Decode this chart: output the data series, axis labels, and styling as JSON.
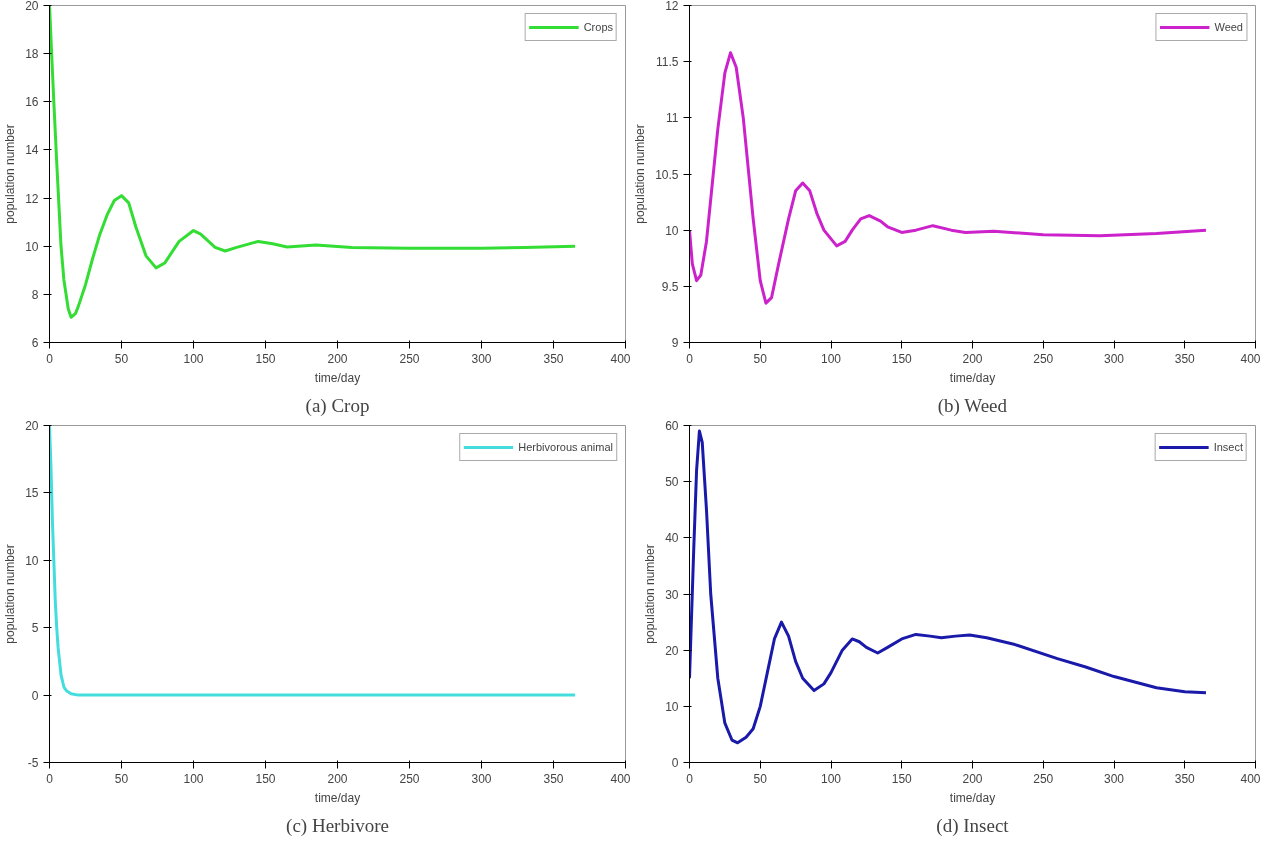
{
  "chart_data": [
    {
      "type": "line",
      "title": "(a) Crop",
      "xlabel": "time/day",
      "ylabel": "population number",
      "xlim": [
        0,
        400
      ],
      "ylim": [
        6,
        20
      ],
      "xticks": [
        0,
        50,
        100,
        150,
        200,
        250,
        300,
        350,
        400
      ],
      "yticks": [
        6,
        8,
        10,
        12,
        14,
        16,
        18,
        20
      ],
      "legend": "top right",
      "grid": false,
      "series": [
        {
          "name": "Crops",
          "color": "#33dd33",
          "x": [
            0,
            3,
            5,
            8,
            10,
            13,
            15,
            18,
            20,
            25,
            30,
            35,
            40,
            45,
            50,
            55,
            60,
            67,
            74,
            80,
            90,
            100,
            105,
            115,
            122,
            130,
            145,
            155,
            165,
            185,
            210,
            250,
            300,
            330,
            365
          ],
          "values": [
            20,
            16,
            13.5,
            10,
            8.6,
            7.4,
            7.05,
            7.2,
            7.5,
            8.4,
            9.5,
            10.5,
            11.3,
            11.9,
            12.1,
            11.8,
            10.8,
            9.6,
            9.1,
            9.3,
            10.2,
            10.65,
            10.5,
            9.95,
            9.8,
            9.95,
            10.2,
            10.1,
            9.97,
            10.05,
            9.95,
            9.92,
            9.92,
            9.95,
            10
          ]
        }
      ]
    },
    {
      "type": "line",
      "title": "(b) Weed",
      "xlabel": "time/day",
      "ylabel": "population number",
      "xlim": [
        0,
        400
      ],
      "ylim": [
        9,
        12
      ],
      "xticks": [
        0,
        50,
        100,
        150,
        200,
        250,
        300,
        350,
        400
      ],
      "yticks": [
        9,
        9.5,
        10,
        10.5,
        11,
        11.5,
        12
      ],
      "legend": "top right",
      "grid": false,
      "series": [
        {
          "name": "Weed",
          "color": "#cc22cc",
          "x": [
            0,
            2,
            5,
            8,
            12,
            16,
            20,
            25,
            29,
            33,
            38,
            45,
            50,
            54,
            58,
            63,
            70,
            75,
            80,
            85,
            90,
            95,
            104,
            110,
            115,
            121,
            127,
            135,
            140,
            150,
            160,
            172,
            185,
            195,
            215,
            250,
            290,
            330,
            365
          ],
          "values": [
            10,
            9.7,
            9.55,
            9.6,
            9.9,
            10.4,
            10.9,
            11.4,
            11.58,
            11.45,
            11.0,
            10.1,
            9.55,
            9.35,
            9.4,
            9.7,
            10.1,
            10.35,
            10.42,
            10.35,
            10.15,
            10.0,
            9.86,
            9.9,
            10.0,
            10.1,
            10.13,
            10.08,
            10.03,
            9.98,
            10.0,
            10.04,
            10.0,
            9.98,
            9.99,
            9.96,
            9.95,
            9.97,
            10
          ]
        }
      ]
    },
    {
      "type": "line",
      "title": "(c) Herbivore",
      "xlabel": "time/day",
      "ylabel": "population number",
      "xlim": [
        0,
        400
      ],
      "ylim": [
        -5,
        20
      ],
      "xticks": [
        0,
        50,
        100,
        150,
        200,
        250,
        300,
        350,
        400
      ],
      "yticks": [
        -5,
        0,
        5,
        10,
        15,
        20
      ],
      "legend": "top right",
      "grid": false,
      "series": [
        {
          "name": "Herbivorous animal",
          "color": "#44dddd",
          "x": [
            0,
            1,
            2,
            3,
            4,
            5,
            6,
            8,
            10,
            12,
            15,
            20,
            50,
            100,
            200,
            300,
            365
          ],
          "values": [
            20,
            17,
            13,
            10,
            7,
            5,
            3.5,
            1.5,
            0.6,
            0.3,
            0.1,
            0,
            0,
            0,
            0,
            0,
            0
          ]
        }
      ]
    },
    {
      "type": "line",
      "title": "(d) Insect",
      "xlabel": "time/day",
      "ylabel": "population number",
      "xlim": [
        0,
        400
      ],
      "ylim": [
        0,
        60
      ],
      "xticks": [
        0,
        50,
        100,
        150,
        200,
        250,
        300,
        350,
        400
      ],
      "yticks": [
        0,
        10,
        20,
        30,
        40,
        50,
        60
      ],
      "legend": "top right",
      "grid": false,
      "series": [
        {
          "name": "Insect",
          "color": "#1a1aaa",
          "x": [
            0,
            3,
            5,
            7,
            9,
            12,
            15,
            20,
            25,
            30,
            34,
            40,
            45,
            50,
            55,
            60,
            65,
            70,
            75,
            80,
            88,
            95,
            100,
            108,
            115,
            120,
            125,
            133,
            140,
            150,
            160,
            170,
            178,
            188,
            198,
            210,
            230,
            260,
            280,
            300,
            330,
            350,
            365
          ],
          "values": [
            15,
            38,
            52,
            59,
            57,
            45,
            30,
            15,
            7,
            4,
            3.5,
            4.5,
            6,
            10,
            16,
            22,
            25,
            22.5,
            18,
            15,
            12.8,
            14,
            16,
            20,
            22,
            21.5,
            20.5,
            19.5,
            20.5,
            22,
            22.8,
            22.5,
            22.2,
            22.5,
            22.7,
            22.2,
            21,
            18.5,
            17,
            15.3,
            13.3,
            12.6,
            12.4
          ]
        }
      ]
    }
  ]
}
